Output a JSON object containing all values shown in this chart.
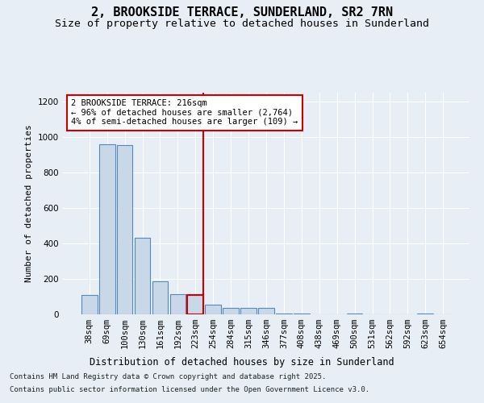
{
  "title_line1": "2, BROOKSIDE TERRACE, SUNDERLAND, SR2 7RN",
  "title_line2": "Size of property relative to detached houses in Sunderland",
  "xlabel": "Distribution of detached houses by size in Sunderland",
  "ylabel": "Number of detached properties",
  "categories": [
    "38sqm",
    "69sqm",
    "100sqm",
    "130sqm",
    "161sqm",
    "192sqm",
    "223sqm",
    "254sqm",
    "284sqm",
    "315sqm",
    "346sqm",
    "377sqm",
    "408sqm",
    "438sqm",
    "469sqm",
    "500sqm",
    "531sqm",
    "562sqm",
    "592sqm",
    "623sqm",
    "654sqm"
  ],
  "values": [
    110,
    960,
    955,
    430,
    185,
    115,
    110,
    55,
    35,
    35,
    35,
    5,
    5,
    0,
    0,
    5,
    0,
    0,
    0,
    5,
    0
  ],
  "bar_color": "#c8d8e8",
  "bar_edge_color": "#5588bb",
  "highlight_bar_index": 6,
  "highlight_bar_edge_color": "#cc0000",
  "vline_x_index": 6,
  "vline_color": "#cc0000",
  "ylim": [
    0,
    1250
  ],
  "yticks": [
    0,
    200,
    400,
    600,
    800,
    1000,
    1200
  ],
  "annotation_text": "2 BROOKSIDE TERRACE: 216sqm\n← 96% of detached houses are smaller (2,764)\n4% of semi-detached houses are larger (109) →",
  "annotation_box_color": "#ffffff",
  "annotation_box_edge_color": "#cc0000",
  "background_color": "#e8eef5",
  "plot_bg_color": "#e8eef5",
  "footer_line1": "Contains HM Land Registry data © Crown copyright and database right 2025.",
  "footer_line2": "Contains public sector information licensed under the Open Government Licence v3.0.",
  "title_fontsize": 11,
  "subtitle_fontsize": 9.5,
  "tick_fontsize": 7.5,
  "xlabel_fontsize": 8.5,
  "ylabel_fontsize": 8,
  "footer_fontsize": 6.5,
  "annotation_fontsize": 7.5
}
